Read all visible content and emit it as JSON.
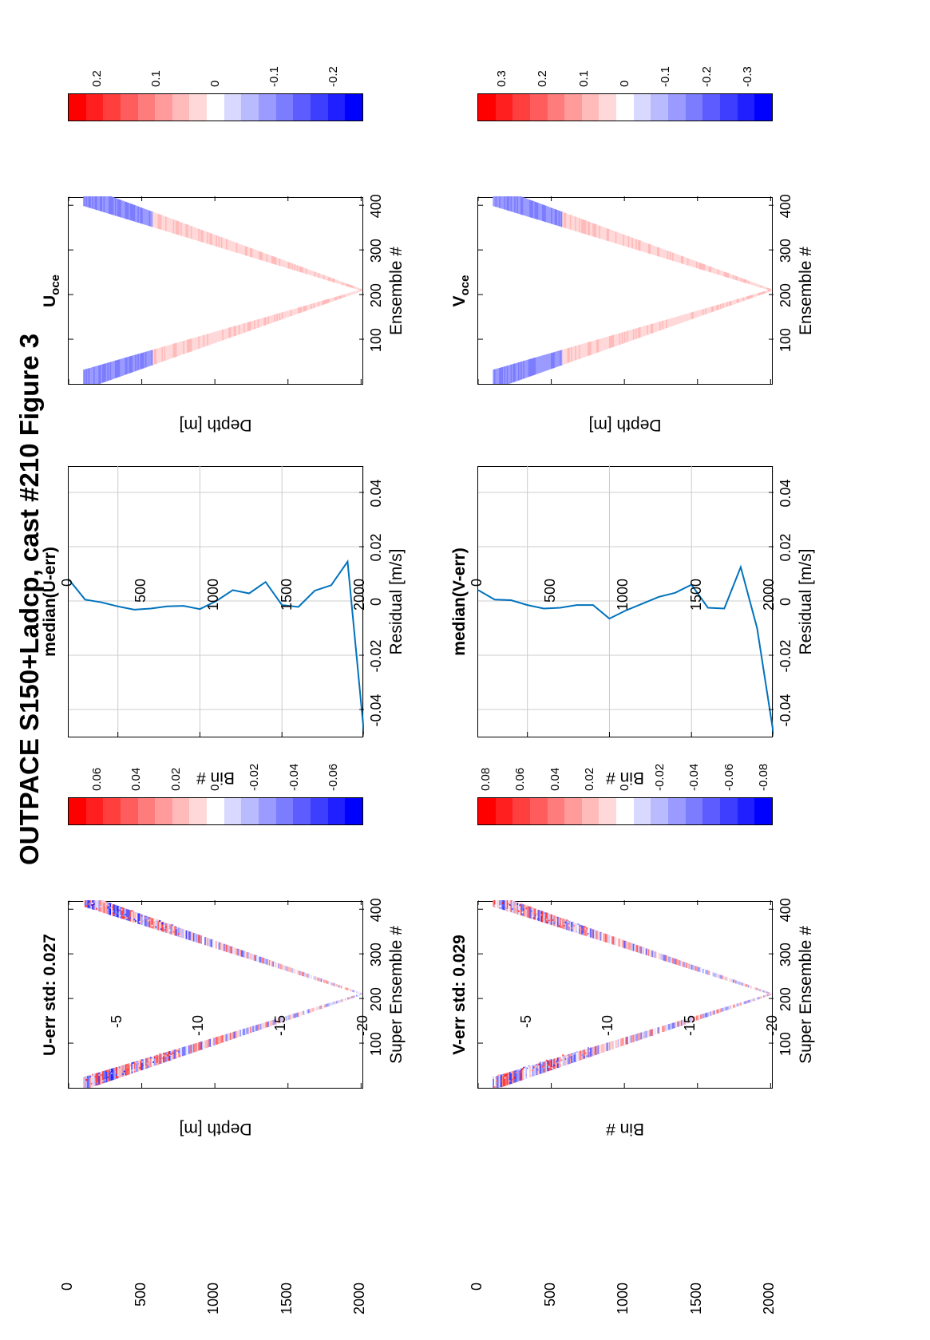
{
  "figure_title": "OUTPACE S150+Ladcp, cast #210  Figure 3",
  "colorbar_colors": [
    "#ff0000",
    "#ff1f1f",
    "#ff3e3e",
    "#ff5d5d",
    "#ff7c7c",
    "#ff9b9b",
    "#ffbaba",
    "#ffd9d9",
    "#ffffff",
    "#d9d9ff",
    "#babaff",
    "#9b9bff",
    "#7c7cff",
    "#5d5dff",
    "#3e3eff",
    "#1f1fff",
    "#0000ff"
  ],
  "line_color": "#0072bd",
  "chart_data": [
    {
      "id": "u-err",
      "type": "heatmap",
      "title": "U-err std: 0.027",
      "xlabel": "Super Ensemble #",
      "ylabel": "Depth [m]",
      "xlim": [
        0,
        420
      ],
      "ylim": [
        0,
        2020
      ],
      "xticks": [
        "100",
        "200",
        "300",
        "400"
      ],
      "yticks": [
        "0",
        "500",
        "1000",
        "1500",
        "2000"
      ],
      "profile": {
        "start_x": 10,
        "turn_x": 210,
        "end_x": 420,
        "max_depth": 2000,
        "surface_depth": 100
      },
      "colorbar_ticks": [
        "0.06",
        "0.04",
        "0.02",
        "0",
        "-0.02",
        "-0.04",
        "-0.06"
      ],
      "clim": [
        -0.075,
        0.075
      ]
    },
    {
      "id": "u-median",
      "type": "line",
      "title": "median(U-err)",
      "xlabel": "Residual [m/s]",
      "ylabel": "Bin #",
      "xlim": [
        -0.05,
        0.05
      ],
      "ylim": [
        -20,
        -2
      ],
      "xticks": [
        "-0.04",
        "-0.02",
        "0",
        "0.02",
        "0.04"
      ],
      "yticks": [
        "-5",
        "-10",
        "-15",
        "-20"
      ],
      "grid": true,
      "bins": [
        -2,
        -3,
        -4,
        -5,
        -6,
        -7,
        -8,
        -9,
        -10,
        -11,
        -12,
        -13,
        -14,
        -15,
        -16,
        -17,
        -18,
        -19,
        -20
      ],
      "values": [
        0.008,
        0.0005,
        -0.0005,
        -0.002,
        -0.0032,
        -0.0028,
        -0.002,
        -0.0018,
        -0.003,
        0.0,
        0.004,
        0.0028,
        0.007,
        -0.0015,
        -0.0022,
        0.0038,
        0.0058,
        0.0145,
        -0.049
      ]
    },
    {
      "id": "u-oce",
      "type": "heatmap",
      "title": "U",
      "title_sub": "oce",
      "xlabel": "Ensemble #",
      "ylabel": "Depth [m]",
      "xlim": [
        0,
        420
      ],
      "ylim": [
        0,
        2020
      ],
      "xticks": [
        "100",
        "200",
        "300",
        "400"
      ],
      "yticks": [
        "0",
        "500",
        "1000",
        "1500",
        "2000"
      ],
      "profile": {
        "start_x": 10,
        "turn_x": 210,
        "end_x": 420,
        "max_depth": 2000,
        "surface_depth": 100
      },
      "colorbar_ticks": [
        "0.2",
        "0.1",
        "0",
        "-0.1",
        "-0.2"
      ],
      "clim": [
        -0.25,
        0.25
      ]
    },
    {
      "id": "v-err",
      "type": "heatmap",
      "title": "V-err std: 0.029",
      "xlabel": "Super Ensemble #",
      "ylabel": "Bin #",
      "xlim": [
        0,
        420
      ],
      "ylim": [
        0,
        2020
      ],
      "xticks": [
        "100",
        "200",
        "300",
        "400"
      ],
      "yticks": [
        "0",
        "500",
        "1000",
        "1500",
        "2000"
      ],
      "profile": {
        "start_x": 10,
        "turn_x": 210,
        "end_x": 420,
        "max_depth": 2000,
        "surface_depth": 100
      },
      "colorbar_ticks": [
        "0.08",
        "0.06",
        "0.04",
        "0.02",
        "0",
        "-0.02",
        "-0.04",
        "-0.06",
        "-0.08"
      ],
      "clim": [
        -0.085,
        0.085
      ]
    },
    {
      "id": "v-median",
      "type": "line",
      "title": "median(V-err)",
      "xlabel": "Residual [m/s]",
      "ylabel": "Bin #",
      "xlim": [
        -0.05,
        0.05
      ],
      "ylim": [
        -20,
        -2
      ],
      "xticks": [
        "-0.04",
        "-0.02",
        "0",
        "0.02",
        "0.04"
      ],
      "yticks": [
        "-5",
        "-10",
        "-15",
        "-20"
      ],
      "grid": true,
      "bins": [
        -2,
        -3,
        -4,
        -5,
        -6,
        -7,
        -8,
        -9,
        -10,
        -11,
        -12,
        -13,
        -14,
        -15,
        -16,
        -17,
        -18,
        -19,
        -20
      ],
      "values": [
        0.004,
        0.0005,
        0.0003,
        -0.0015,
        -0.0028,
        -0.0025,
        -0.0015,
        -0.0015,
        -0.0065,
        -0.0035,
        -0.001,
        0.0015,
        0.003,
        0.006,
        -0.0025,
        -0.0028,
        0.0125,
        -0.01,
        -0.049
      ]
    },
    {
      "id": "v-oce",
      "type": "heatmap",
      "title": "V",
      "title_sub": "oce",
      "xlabel": "Ensemble #",
      "ylabel": "Depth [m]",
      "xlim": [
        0,
        420
      ],
      "ylim": [
        0,
        2020
      ],
      "xticks": [
        "100",
        "200",
        "300",
        "400"
      ],
      "yticks": [
        "0",
        "500",
        "1000",
        "1500",
        "2000"
      ],
      "profile": {
        "start_x": 10,
        "turn_x": 210,
        "end_x": 420,
        "max_depth": 2000,
        "surface_depth": 100
      },
      "colorbar_ticks": [
        "0.3",
        "0.2",
        "0.1",
        "0",
        "-0.1",
        "-0.2",
        "-0.3"
      ],
      "clim": [
        -0.36,
        0.36
      ]
    }
  ]
}
